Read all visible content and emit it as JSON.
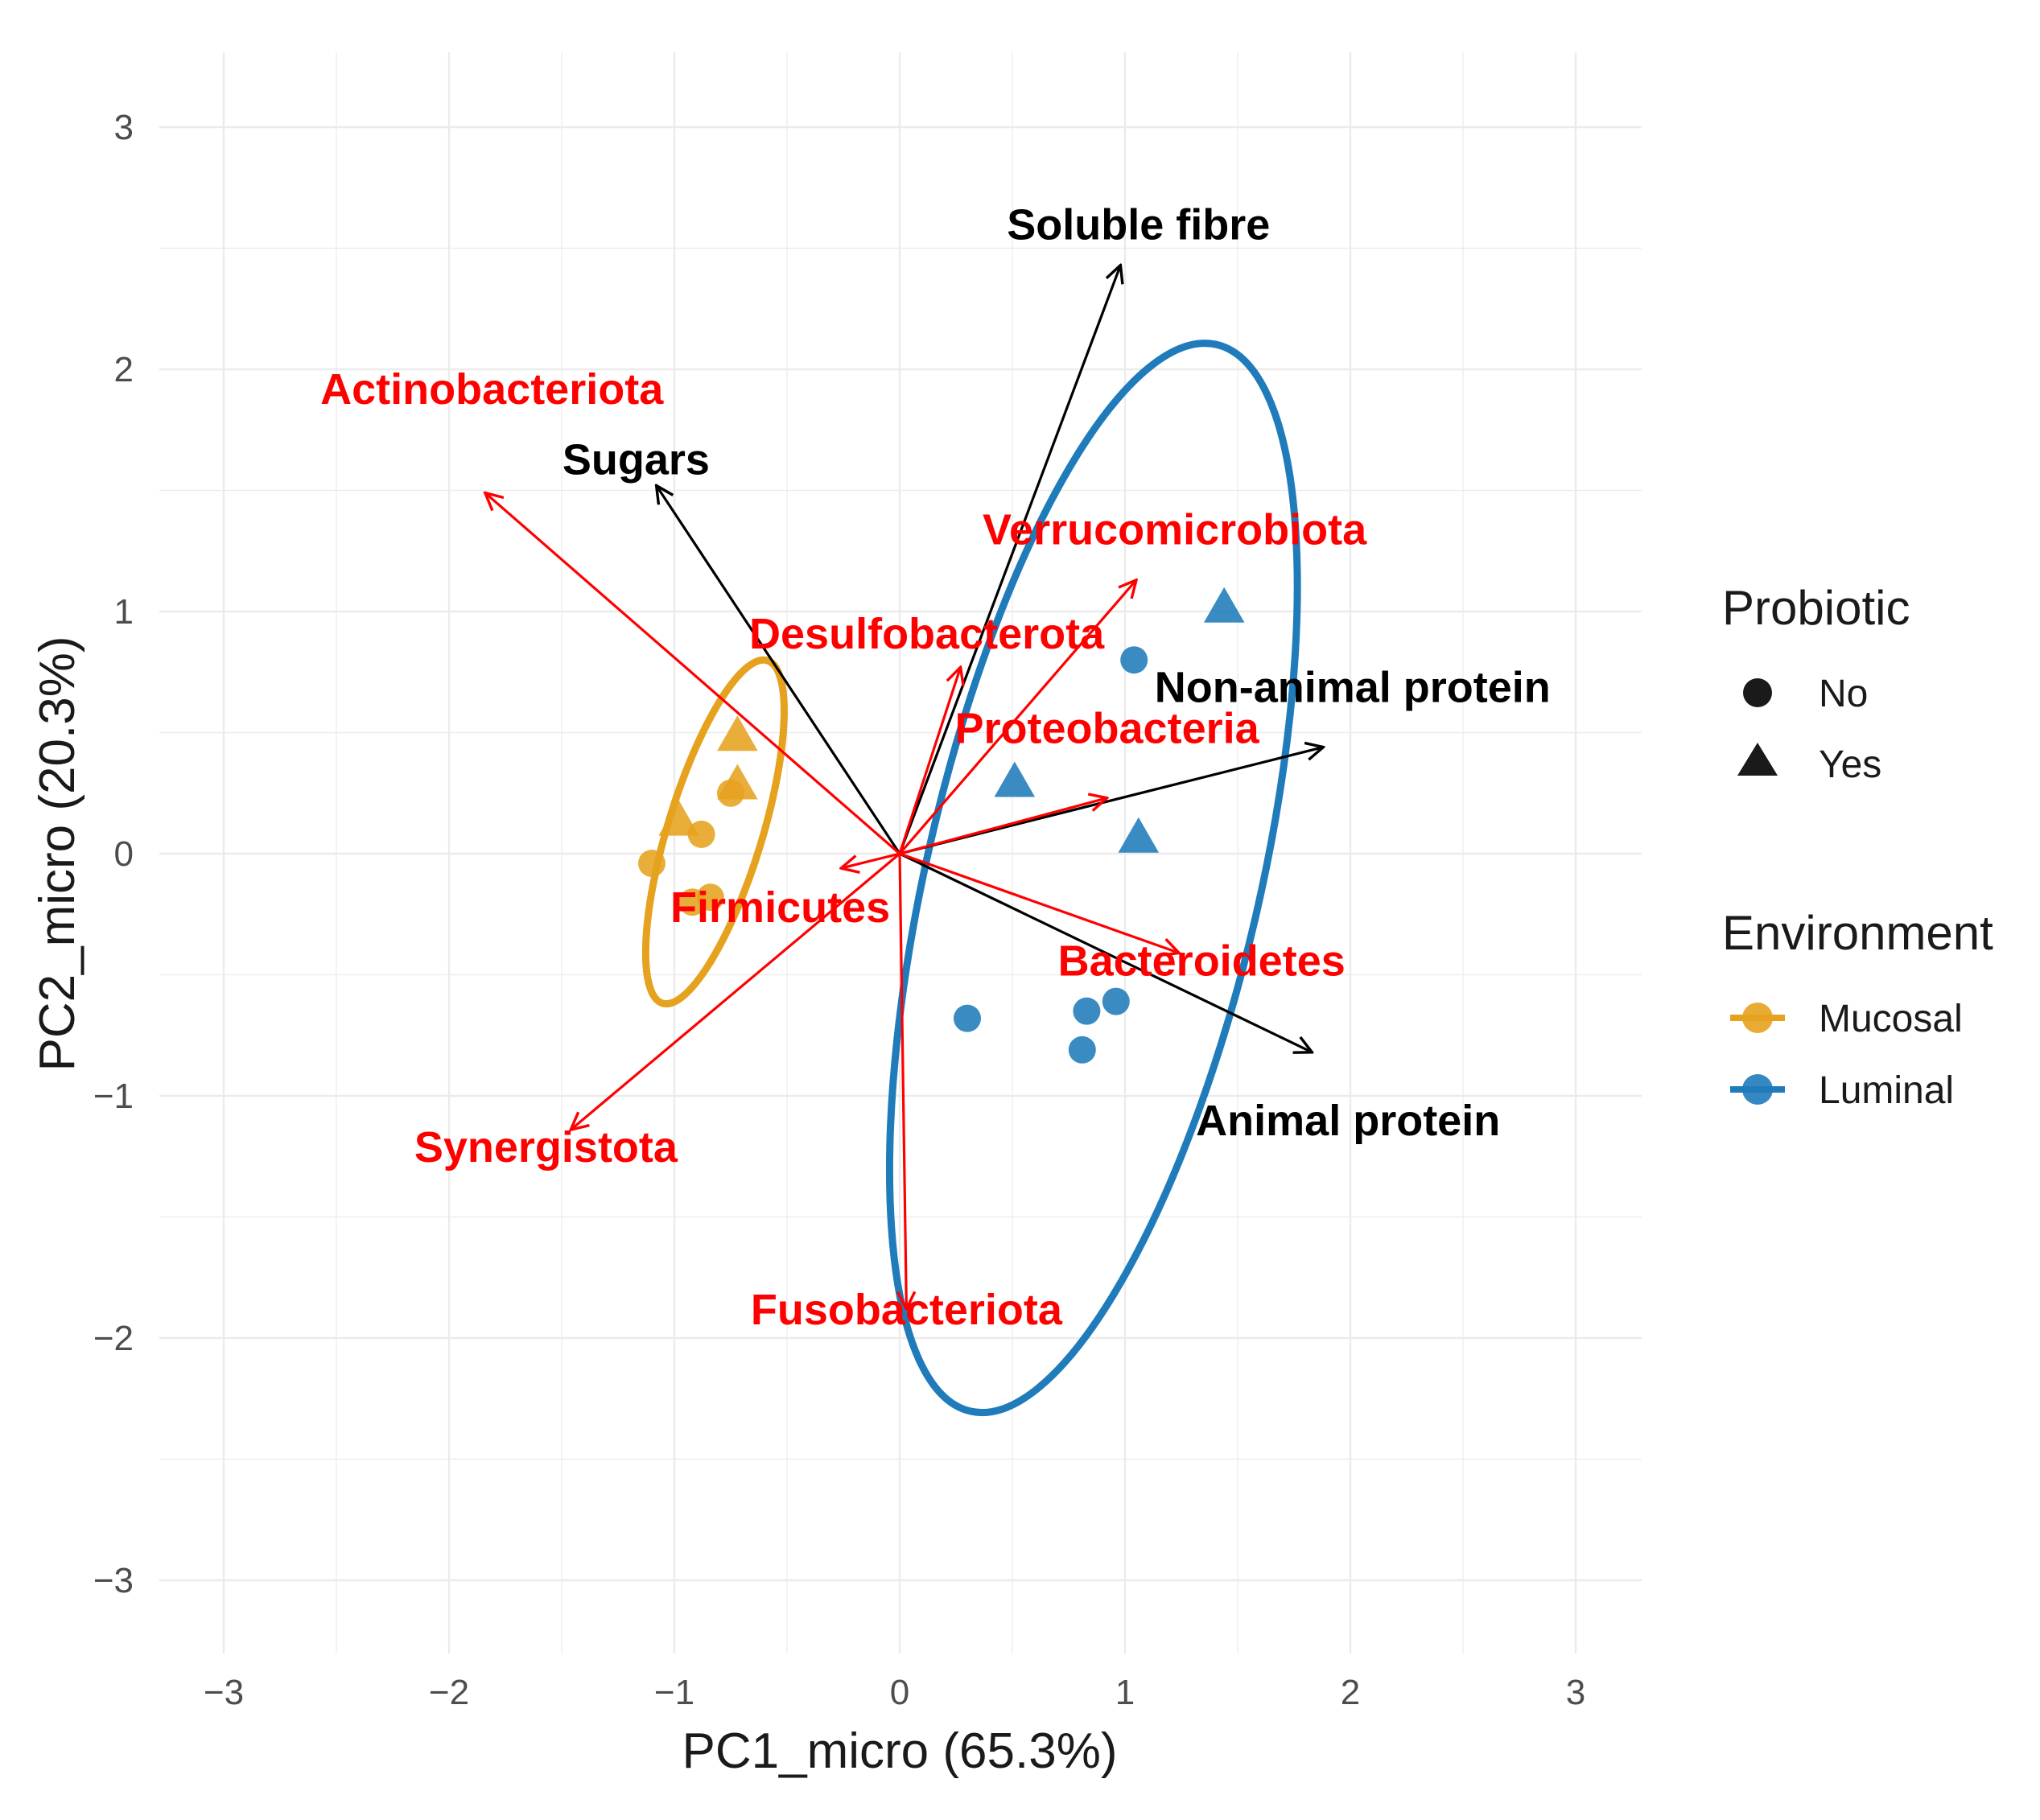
{
  "chart_data": {
    "type": "scatter",
    "subtype": "pca-biplot",
    "xlabel": "PC1_micro (65.3%)",
    "ylabel": "PC2_micro (20.3%)",
    "xlim": [
      -3.3,
      3.3
    ],
    "ylim": [
      -3.3,
      3.3
    ],
    "xticks": [
      -3,
      -2,
      -1,
      0,
      1,
      2,
      3
    ],
    "yticks": [
      -3,
      -2,
      -1,
      0,
      1,
      2,
      3
    ],
    "xtick_labels": [
      "−3",
      "−2",
      "−1",
      "0",
      "1",
      "2",
      "3"
    ],
    "ytick_labels": [
      "−3",
      "−2",
      "−1",
      "0",
      "1",
      "2",
      "3"
    ],
    "grid": true,
    "colors": {
      "Mucosal": "#E6A21E",
      "Luminal": "#1F7BBA",
      "phyla": "#FF0000",
      "diet": "#000000",
      "grid": "#EBEBEB"
    },
    "points": [
      {
        "x": -1.1,
        "y": -0.04,
        "environment": "Mucosal",
        "probiotic": "No"
      },
      {
        "x": -0.88,
        "y": 0.08,
        "environment": "Mucosal",
        "probiotic": "No"
      },
      {
        "x": -0.75,
        "y": 0.25,
        "environment": "Mucosal",
        "probiotic": "No"
      },
      {
        "x": -0.92,
        "y": -0.2,
        "environment": "Mucosal",
        "probiotic": "No"
      },
      {
        "x": -0.84,
        "y": -0.18,
        "environment": "Mucosal",
        "probiotic": "No"
      },
      {
        "x": -0.72,
        "y": 0.49,
        "environment": "Mucosal",
        "probiotic": "Yes"
      },
      {
        "x": -0.72,
        "y": 0.29,
        "environment": "Mucosal",
        "probiotic": "Yes"
      },
      {
        "x": -0.98,
        "y": 0.14,
        "environment": "Mucosal",
        "probiotic": "Yes"
      },
      {
        "x": 1.04,
        "y": 0.8,
        "environment": "Luminal",
        "probiotic": "No"
      },
      {
        "x": 0.3,
        "y": -0.68,
        "environment": "Luminal",
        "probiotic": "No"
      },
      {
        "x": 0.83,
        "y": -0.65,
        "environment": "Luminal",
        "probiotic": "No"
      },
      {
        "x": 0.96,
        "y": -0.61,
        "environment": "Luminal",
        "probiotic": "No"
      },
      {
        "x": 0.81,
        "y": -0.81,
        "environment": "Luminal",
        "probiotic": "No"
      },
      {
        "x": 1.44,
        "y": 1.02,
        "environment": "Luminal",
        "probiotic": "Yes"
      },
      {
        "x": 0.51,
        "y": 0.3,
        "environment": "Luminal",
        "probiotic": "Yes"
      },
      {
        "x": 1.06,
        "y": 0.07,
        "environment": "Luminal",
        "probiotic": "Yes"
      }
    ],
    "ellipses": [
      {
        "environment": "Mucosal",
        "cx": -0.82,
        "cy": 0.09,
        "rx": 0.21,
        "ry": 0.74,
        "angle_deg": 17
      },
      {
        "environment": "Luminal",
        "cx": 0.86,
        "cy": -0.1,
        "rx": 0.74,
        "ry": 2.26,
        "angle_deg": 13
      }
    ],
    "phyla_vectors": [
      {
        "name": "Actinobacteriota",
        "x": -1.84,
        "y": 1.49,
        "label_x": -1.81,
        "label_y": 1.92
      },
      {
        "name": "Desulfobacterota",
        "x": 0.27,
        "y": 0.77,
        "label_x": 0.12,
        "label_y": 0.91
      },
      {
        "name": "Verrucomicrobiota",
        "x": 1.05,
        "y": 1.13,
        "label_x": 1.22,
        "label_y": 1.34
      },
      {
        "name": "Proteobacteria",
        "x": 0.92,
        "y": 0.23,
        "label_x": 0.92,
        "label_y": 0.52
      },
      {
        "name": "Firmicutes",
        "x": -0.26,
        "y": -0.06,
        "label_x": -0.53,
        "label_y": -0.22
      },
      {
        "name": "Bacteroidetes",
        "x": 1.24,
        "y": -0.41,
        "label_x": 1.34,
        "label_y": -0.44
      },
      {
        "name": "Synergistota",
        "x": -1.46,
        "y": -1.14,
        "label_x": -1.57,
        "label_y": -1.21
      },
      {
        "name": "Fusobacteriota",
        "x": 0.03,
        "y": -1.88,
        "label_x": 0.03,
        "label_y": -1.88
      }
    ],
    "diet_vectors": [
      {
        "name": "Soluble fibre",
        "x": 0.98,
        "y": 2.43,
        "label_x": 1.06,
        "label_y": 2.6
      },
      {
        "name": "Sugars",
        "x": -1.08,
        "y": 1.52,
        "label_x": -1.17,
        "label_y": 1.63
      },
      {
        "name": "Non-animal protein",
        "x": 1.88,
        "y": 0.44,
        "label_x": 2.01,
        "label_y": 0.69
      },
      {
        "name": "Animal protein",
        "x": 1.83,
        "y": -0.82,
        "label_x": 1.99,
        "label_y": -1.1
      }
    ],
    "legend": {
      "position": "right",
      "probiotic": {
        "title": "Probiotic",
        "entries": [
          {
            "label": "No",
            "shape": "circle"
          },
          {
            "label": "Yes",
            "shape": "triangle"
          }
        ]
      },
      "environment": {
        "title": "Environment",
        "entries": [
          {
            "label": "Mucosal"
          },
          {
            "label": "Luminal"
          }
        ]
      }
    }
  }
}
